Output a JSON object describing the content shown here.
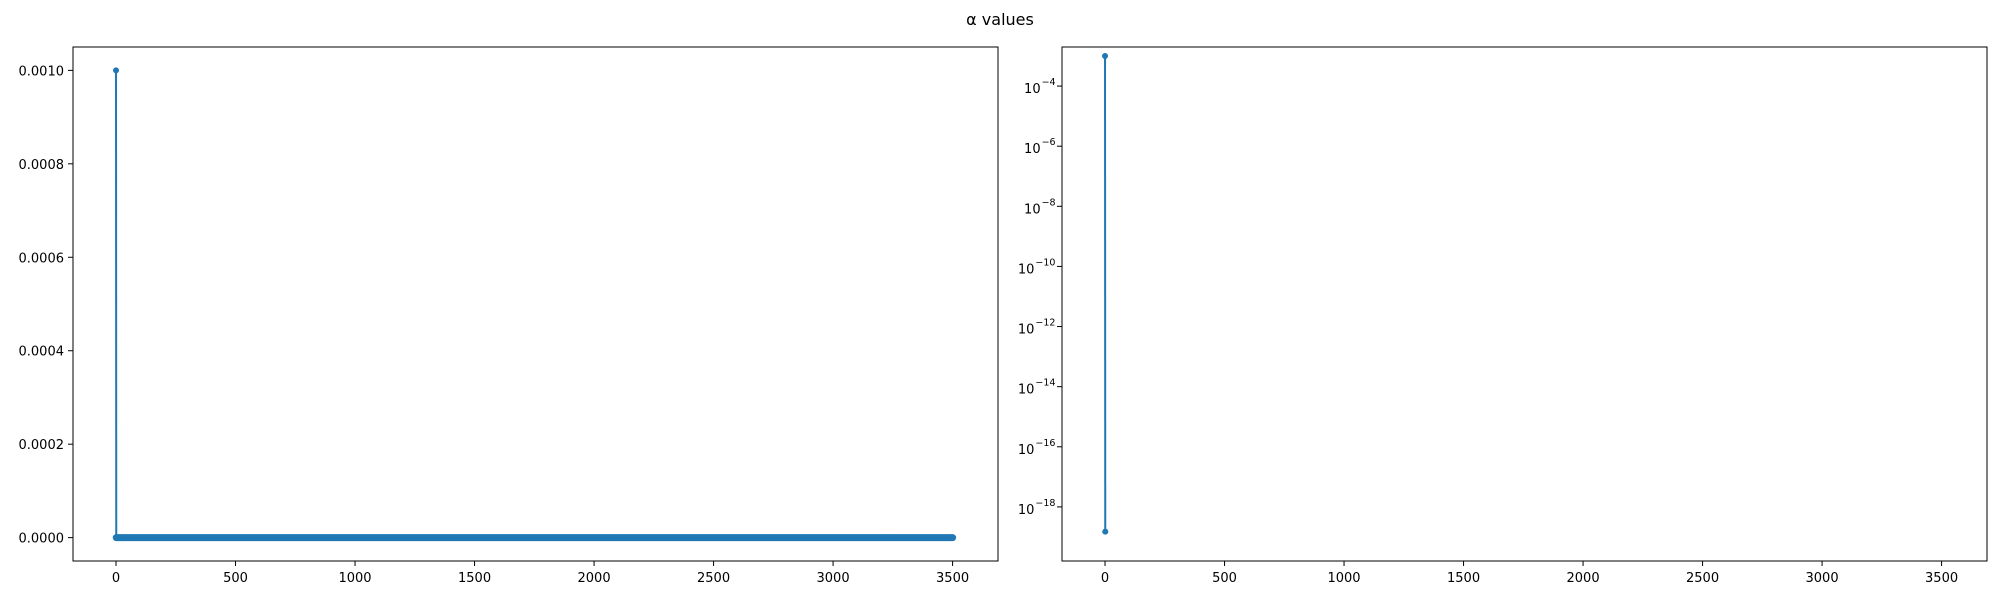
{
  "chart_data": {
    "title": "α values",
    "color": "#1f77b4",
    "charts": [
      {
        "type": "line",
        "yscale": "linear",
        "xlim": [
          -180,
          3690
        ],
        "ylim": [
          -5e-05,
          0.00105
        ],
        "xticks": [
          0,
          500,
          1000,
          1500,
          2000,
          2500,
          3000,
          3500
        ],
        "xtick_labels": [
          "0",
          "500",
          "1000",
          "1500",
          "2000",
          "2500",
          "3000",
          "3500"
        ],
        "yticks": [
          0,
          0.0002,
          0.0004,
          0.0006,
          0.0008,
          0.001
        ],
        "ytick_labels": [
          "0.0000",
          "0.0002",
          "0.0004",
          "0.0006",
          "0.0008",
          "0.0010"
        ],
        "series": [
          {
            "marker": "dot",
            "points": [
              [
                0,
                0.001
              ]
            ],
            "dense_run": {
              "x_start": 1,
              "x_end": 3500,
              "y": 0
            }
          }
        ],
        "grid": false,
        "legend": "none"
      },
      {
        "type": "line",
        "yscale": "log",
        "xlim": [
          -180,
          3690
        ],
        "ylim_exp": [
          -19.8,
          -2.7
        ],
        "xticks": [
          0,
          500,
          1000,
          1500,
          2000,
          2500,
          3000,
          3500
        ],
        "xtick_labels": [
          "0",
          "500",
          "1000",
          "1500",
          "2000",
          "2500",
          "3000",
          "3500"
        ],
        "yticks_exp": [
          -4,
          -6,
          -8,
          -10,
          -12,
          -14,
          -16,
          -18
        ],
        "ytick_base": "10",
        "ytick_exponents": [
          "−4",
          "−6",
          "−8",
          "−10",
          "−12",
          "−14",
          "−16",
          "−18"
        ],
        "series": [
          {
            "marker": "dot",
            "points": [
              [
                0,
                0.001
              ],
              [
                1,
                1.5e-19
              ]
            ]
          }
        ],
        "grid": false,
        "legend": "none"
      }
    ]
  }
}
